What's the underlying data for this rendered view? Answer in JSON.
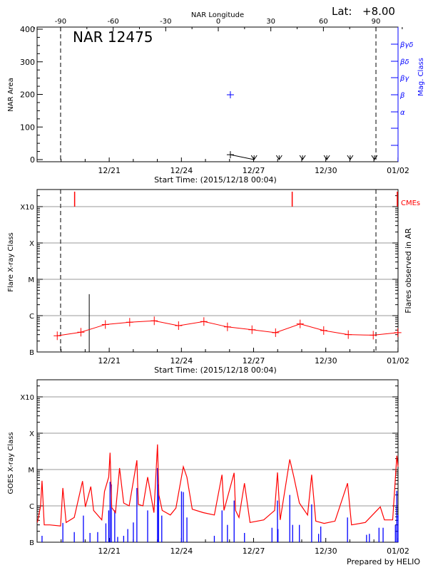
{
  "header": {
    "lat_label": "Lat:",
    "lat_value": "+8.00"
  },
  "footer": {
    "prepared_by": "Prepared by HELIO"
  },
  "colors": {
    "axis": "#000000",
    "mag_class": "#0000ff",
    "flare": "#ff0000",
    "goes_long": "#ff0000",
    "goes_short": "#0000ff",
    "grid": "#999999"
  },
  "chart_data": [
    {
      "type": "line",
      "title": "NAR 12475",
      "xlabel": "Start Time: (2015/12/18 00:04)",
      "ylabel": "NAR Area",
      "top_xlabel": "NAR Longitude",
      "right_ylabel": "Mag. Class",
      "xlim": [
        "12/18 00:04",
        "01/02 00:04"
      ],
      "ylim": [
        -7,
        406
      ],
      "x_tick_labels": [
        "12/21",
        "12/24",
        "12/27",
        "12/30",
        "01/02"
      ],
      "y_tick_labels": [
        "0",
        "100",
        "200",
        "300",
        "400"
      ],
      "longitude_tick_labels": [
        "-90",
        "-60",
        "-30",
        "0",
        "30",
        "60",
        "90"
      ],
      "limb_longitudes": [
        -90,
        90
      ],
      "mag_class_tick_labels": [
        "α",
        "β",
        "βγ",
        "βδ",
        "βγδ"
      ],
      "area_series": [
        {
          "t": "12/26 00:50",
          "area": 15
        },
        {
          "t": "12/27 00:30",
          "area": 0
        },
        {
          "t": "12/28 01:30",
          "area": 0
        },
        {
          "t": "12/29 00:50",
          "area": 0
        },
        {
          "t": "12/30 01:00",
          "area": 0
        },
        {
          "t": "12/31 00:20",
          "area": 0
        },
        {
          "t": "01/01 00:30",
          "area": 0
        }
      ],
      "mag_class_points": [
        {
          "t": "12/26 00:50",
          "class": "β"
        }
      ]
    },
    {
      "type": "line",
      "xlabel": "Start Time: (2015/12/18 00:04)",
      "ylabel": "Flare X-ray Class",
      "right_ylabel": "Flares observed in AR",
      "cme_label": "CMEs",
      "y_scale": "log",
      "y_tick_labels": [
        "B",
        "C",
        "M",
        "X",
        "X10"
      ],
      "x_tick_labels": [
        "12/21",
        "12/24",
        "12/27",
        "12/30",
        "01/02"
      ],
      "grid": true,
      "background_series": [
        {
          "t": "12/18 20:10",
          "class": "B2.8"
        },
        {
          "t": "12/19 19:45",
          "class": "B3.5"
        },
        {
          "t": "12/20 20:10",
          "class": "B5.7"
        },
        {
          "t": "12/21 20:25",
          "class": "B6.6"
        },
        {
          "t": "12/22 20:55",
          "class": "B7.2"
        },
        {
          "t": "12/23 21:10",
          "class": "B5.3"
        },
        {
          "t": "12/24 22:25",
          "class": "B6.9"
        },
        {
          "t": "12/25 21:55",
          "class": "B4.9"
        },
        {
          "t": "12/26 22:25",
          "class": "B4.1"
        },
        {
          "t": "12/27 21:55",
          "class": "B3.4"
        },
        {
          "t": "12/28 22:25",
          "class": "B5.9"
        },
        {
          "t": "12/29 21:55",
          "class": "B3.9"
        },
        {
          "t": "12/30 22:25",
          "class": "B3.0"
        },
        {
          "t": "12/31 23:20",
          "class": "B2.9"
        },
        {
          "t": "01/01 23:50",
          "class": "B3.4"
        }
      ],
      "flares": [
        {
          "t": "12/20 04:05",
          "class": "C3.9"
        }
      ],
      "cmes": [
        "12/19 13:30",
        "12/28 14:30",
        "01/02 00:00"
      ]
    },
    {
      "type": "line",
      "ylabel": "GOES X-ray Class",
      "y_scale": "log",
      "y_tick_labels": [
        "B",
        "C",
        "M",
        "X",
        "X10"
      ],
      "x_tick_labels": [
        "12/21",
        "12/24",
        "12/27",
        "12/30",
        "01/02"
      ],
      "grid": true,
      "series": [
        {
          "channel": "long",
          "points": [
            [
              "12/18 00:20",
              "B3.5"
            ],
            [
              "12/18 03:30",
              "B9.5"
            ],
            [
              "12/18 05:00",
              "C4.9"
            ],
            [
              "12/18 07:10",
              "B3.0"
            ],
            [
              "12/18 12:40",
              "B3.0"
            ],
            [
              "12/18 23:30",
              "B2.8"
            ],
            [
              "12/19 01:45",
              "C3.1"
            ],
            [
              "12/19 05:00",
              "B3.5"
            ],
            [
              "12/19 13:10",
              "B4.8"
            ],
            [
              "12/19 21:25",
              "C4.8"
            ],
            [
              "12/20 00:15",
              "B9.4"
            ],
            [
              "12/20 05:40",
              "C3.4"
            ],
            [
              "12/20 08:25",
              "B7.5"
            ],
            [
              "12/20 16:35",
              "B4.1"
            ],
            [
              "12/20 19:20",
              "C2.5"
            ],
            [
              "12/20 23:30",
              "C6.2"
            ],
            [
              "12/21 00:50",
              "M2.9"
            ],
            [
              "12/21 02:30",
              "B9.0"
            ],
            [
              "12/21 06:15",
              "B6.5"
            ],
            [
              "12/21 10:20",
              "M1.1"
            ],
            [
              "12/21 14:25",
              "C1.2"
            ],
            [
              "12/21 19:55",
              "C1.0"
            ],
            [
              "12/22 03:35",
              "M1.8"
            ],
            [
              "12/22 05:00",
              "C1.1"
            ],
            [
              "12/22 09:40",
              "C1.0"
            ],
            [
              "12/22 14:20",
              "C6.2"
            ],
            [
              "12/22 20:35",
              "B6.5"
            ],
            [
              "12/23 00:10",
              "M4.9"
            ],
            [
              "12/23 01:30",
              "C2.0"
            ],
            [
              "12/23 04:50",
              "B7.5"
            ],
            [
              "12/23 13:00",
              "B5.6"
            ],
            [
              "12/23 18:30",
              "B8.7"
            ],
            [
              "12/24 01:55",
              "M1.2"
            ],
            [
              "12/24 05:30",
              "C6.2"
            ],
            [
              "12/24 10:50",
              "B8.1"
            ],
            [
              "12/24 21:50",
              "B6.5"
            ],
            [
              "12/25 08:50",
              "B5.6"
            ],
            [
              "12/25 16:30",
              "C7.2"
            ],
            [
              "12/25 18:30",
              "B7.5"
            ],
            [
              "12/26 04:35",
              "C8.1"
            ],
            [
              "12/26 06:00",
              "B7.5"
            ],
            [
              "12/26 09:25",
              "B4.8"
            ],
            [
              "12/26 14:55",
              "C4.2"
            ],
            [
              "12/26 20:25",
              "B3.5"
            ],
            [
              "12/27 10:05",
              "B4.1"
            ],
            [
              "12/27 21:00",
              "B7.5"
            ],
            [
              "12/27 23:50",
              "C8.3"
            ],
            [
              "12/28 02:30",
              "B4.1"
            ],
            [
              "12/28 12:05",
              "M1.9"
            ],
            [
              "12/28 16:10",
              "C6.2"
            ],
            [
              "12/28 21:40",
              "C1.2"
            ],
            [
              "12/29 05:50",
              "B5.6"
            ],
            [
              "12/29 09:55",
              "C7.2"
            ],
            [
              "12/29 14:00",
              "B3.8"
            ],
            [
              "12/29 22:20",
              "B3.3"
            ],
            [
              "12/30 09:10",
              "B3.8"
            ],
            [
              "12/30 21:40",
              "C4.2"
            ],
            [
              "12/31 01:40",
              "B3.0"
            ],
            [
              "12/31 15:25",
              "B3.5"
            ],
            [
              "01/01 06:20",
              "B9.4"
            ],
            [
              "01/01 10:30",
              "B4.1"
            ],
            [
              "01/01 18:45",
              "B4.1"
            ],
            [
              "01/01 22:50",
              "M2.4"
            ],
            [
              "01/02 00:04",
              "M1.2"
            ]
          ]
        },
        {
          "channel": "short",
          "spikes": [
            [
              "12/18 05:00",
              "B1.5"
            ],
            [
              "12/19 01:45",
              "B3.4"
            ],
            [
              "12/19 13:10",
              "B1.9"
            ],
            [
              "12/19 22:15",
              "B5.4"
            ],
            [
              "12/20 04:50",
              "B1.8"
            ],
            [
              "12/20 12:30",
              "B1.9"
            ],
            [
              "12/20 20:40",
              "B3.3"
            ],
            [
              "12/20 23:30",
              "B7.5"
            ],
            [
              "12/21 00:50",
              "C4.6"
            ],
            [
              "12/21 02:10",
              "C3.9"
            ],
            [
              "12/21 05:30",
              "B7.5"
            ],
            [
              "12/21 08:25",
              "B1.4"
            ],
            [
              "12/21 14:25",
              "B1.5"
            ],
            [
              "12/21 18:30",
              "B2.3"
            ],
            [
              "12/22 00:05",
              "B3.5"
            ],
            [
              "12/22 03:35",
              "C3.1"
            ],
            [
              "12/22 14:20",
              "B7.5"
            ],
            [
              "12/23 00:10",
              "M1.1"
            ],
            [
              "12/23 01:15",
              "C3.9"
            ],
            [
              "12/23 04:25",
              "B5.4"
            ],
            [
              "12/24 00:05",
              "C2.5"
            ],
            [
              "12/24 01:55",
              "C2.4"
            ],
            [
              "12/24 05:30",
              "B4.8"
            ],
            [
              "12/25 08:50",
              "B1.5"
            ],
            [
              "12/25 16:30",
              "B7.5"
            ],
            [
              "12/25 21:55",
              "B3.0"
            ],
            [
              "12/26 04:35",
              "C1.4"
            ],
            [
              "12/26 14:55",
              "B1.8"
            ],
            [
              "12/27 18:20",
              "B2.5"
            ],
            [
              "12/27 23:50",
              "C1.4"
            ],
            [
              "12/28 00:20",
              "B2.3"
            ],
            [
              "12/28 12:05",
              "C2.0"
            ],
            [
              "12/28 14:55",
              "B3.0"
            ],
            [
              "12/28 21:40",
              "B3.0"
            ],
            [
              "12/29 09:55",
              "C1.1"
            ],
            [
              "12/29 16:50",
              "B1.7"
            ],
            [
              "12/29 19:00",
              "B2.7"
            ],
            [
              "12/30 21:40",
              "B4.8"
            ],
            [
              "12/31 16:40",
              "B1.6"
            ],
            [
              "12/31 19:30",
              "B1.7"
            ],
            [
              "01/01 05:05",
              "B2.5"
            ],
            [
              "01/01 09:10",
              "B2.5"
            ],
            [
              "01/01 21:25",
              "B3.0"
            ],
            [
              "01/01 22:50",
              "C2.6"
            ],
            [
              "01/02 00:04",
              "B5.6"
            ]
          ]
        }
      ]
    }
  ]
}
